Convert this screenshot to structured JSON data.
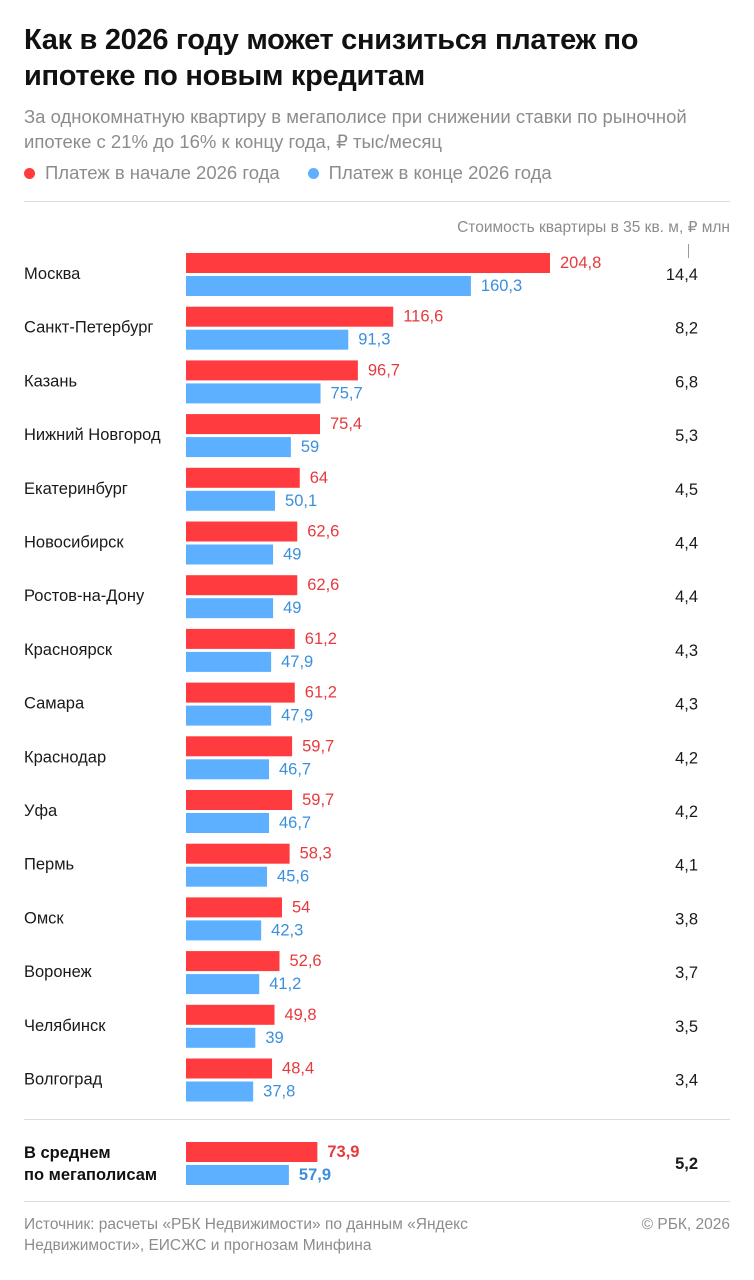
{
  "header": {
    "title": "Как в 2026 году может снизиться платеж по ипотеке по новым кредитам",
    "subtitle": "За однокомнатную квартиру в мегаполисе при снижении ставки по рыночной ипотеке с 21% до 16% к концу года, ₽ тыс/месяц"
  },
  "legend": {
    "start_label": "Платеж в начале 2026 года",
    "end_label": "Платеж в конце 2026 года"
  },
  "colors": {
    "start": "#ff3b3f",
    "end": "#5db0ff",
    "start_text": "#e63a3e",
    "end_text": "#3a8fde"
  },
  "chart_data": {
    "type": "bar",
    "orientation": "horizontal",
    "title": "Как в 2026 году может снизиться платеж по ипотеке по новым кредитам",
    "subtitle": "За однокомнатную квартиру в мегаполисе при снижении ставки по рыночной ипотеке с 21% до 16% к концу года, ₽ тыс/месяц",
    "categories": [
      "Москва",
      "Санкт-Петербург",
      "Казань",
      "Нижний Новгород",
      "Екатеринбург",
      "Новосибирск",
      "Ростов-на-Дону",
      "Красноярск",
      "Самара",
      "Краснодар",
      "Уфа",
      "Пермь",
      "Омск",
      "Воронеж",
      "Челябинск",
      "Волгоград"
    ],
    "series": [
      {
        "name": "Платеж в начале 2026 года",
        "values": [
          204.8,
          116.6,
          96.7,
          75.4,
          64,
          62.6,
          62.6,
          61.2,
          61.2,
          59.7,
          59.7,
          58.3,
          54,
          52.6,
          49.8,
          48.4
        ]
      },
      {
        "name": "Платеж в конце 2026 года",
        "values": [
          160.3,
          91.3,
          75.7,
          59,
          50.1,
          49,
          49,
          47.9,
          47.9,
          46.7,
          46.7,
          45.6,
          42.3,
          41.2,
          39,
          37.8
        ]
      }
    ],
    "start_labels": [
      "204,8",
      "116,6",
      "96,7",
      "75,4",
      "64",
      "62,6",
      "62,6",
      "61,2",
      "61,2",
      "59,7",
      "59,7",
      "58,3",
      "54",
      "52,6",
      "49,8",
      "48,4"
    ],
    "end_labels": [
      "160,3",
      "91,3",
      "75,7",
      "59",
      "50,1",
      "49",
      "49",
      "47,9",
      "47,9",
      "46,7",
      "46,7",
      "45,6",
      "42,3",
      "41,2",
      "39",
      "37,8"
    ],
    "apartment_cost_header": "Стоимость квартиры в 35 кв. м, ₽ млн",
    "apartment_cost": [
      "14,4",
      "8,2",
      "6,8",
      "5,3",
      "4,5",
      "4,4",
      "4,4",
      "4,3",
      "4,3",
      "4,2",
      "4,2",
      "4,1",
      "3,8",
      "3,7",
      "3,5",
      "3,4"
    ],
    "average": {
      "label_line1": "В среднем",
      "label_line2": "по мегаполисам",
      "start": 73.9,
      "end": 57.9,
      "start_label": "73,9",
      "end_label": "57,9",
      "cost": "5,2"
    },
    "xlim": [
      0,
      204.8
    ],
    "grid": false,
    "legend_position": "top-left"
  },
  "footer": {
    "source": "Источник: расчеты «РБК Недвижимости» по данным «Яндекс Недвижимости», ЕИСЖС и прогнозам Минфина",
    "copyright": "© РБК, 2026"
  }
}
